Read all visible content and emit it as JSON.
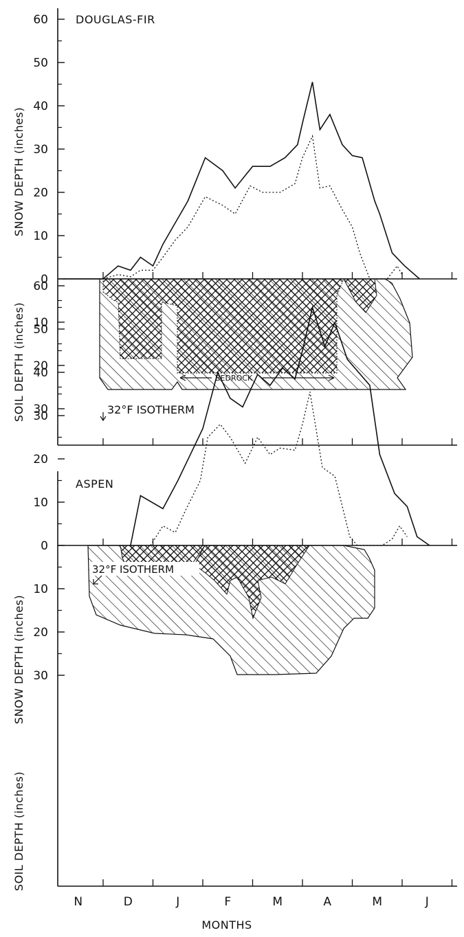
{
  "chart_data": [
    {
      "type": "line",
      "title": "DOUGLAS-FIR",
      "ylabel_top": "SNOW DEPTH (inches)",
      "ylabel_bottom": "SOIL DEPTH (inches)",
      "snow_ticks": [
        "60",
        "50",
        "40",
        "30",
        "20",
        "10",
        "0"
      ],
      "soil_ticks": [
        "10",
        "20",
        "30"
      ],
      "snow_ylim": [
        0,
        65
      ],
      "soil_ylim": [
        0,
        37
      ],
      "months_x_domain": [
        0,
        8
      ],
      "series": [
        {
          "style": "solid",
          "x": [
            -0.8,
            0.0,
            0.1,
            0.3,
            0.55,
            0.75,
            1.0,
            1.2,
            1.4,
            1.7,
            2.05,
            2.4,
            2.65,
            3.0,
            3.35,
            3.65,
            3.9,
            4.0,
            4.2,
            4.35,
            4.55,
            4.8,
            5.0,
            5.2,
            5.45,
            5.55,
            5.8,
            6.05,
            6.35
          ],
          "values": [
            0,
            0,
            1,
            3,
            2,
            5,
            3,
            8,
            12,
            18,
            28,
            25,
            21,
            26,
            26,
            28,
            31,
            36,
            45.5,
            34.5,
            38,
            31,
            28.5,
            28,
            18,
            15,
            6,
            3,
            0
          ]
        },
        {
          "style": "dotted",
          "x": [
            0.0,
            0.3,
            0.55,
            0.75,
            1.0,
            1.2,
            1.45,
            1.7,
            2.05,
            2.4,
            2.65,
            2.95,
            3.2,
            3.55,
            3.85,
            4.0,
            4.2,
            4.35,
            4.55,
            4.8,
            5.0,
            5.15,
            5.35,
            5.7,
            5.9,
            6.0
          ],
          "values": [
            0,
            1,
            0.5,
            2,
            2,
            5,
            9,
            12,
            19,
            17,
            15,
            21.5,
            20,
            20,
            22,
            28,
            33,
            21,
            21.5,
            16,
            12,
            6,
            0,
            0,
            3,
            1
          ]
        }
      ],
      "annotations": [
        "BEDROCK",
        "32°F ISOTHERM"
      ]
    },
    {
      "type": "line",
      "title": "ASPEN",
      "ylabel_top": "SNOW DEPTH (inches)",
      "ylabel_bottom": "SOIL DEPTH (inches)",
      "snow_ticks": [
        "60",
        "50",
        "40",
        "30",
        "20",
        "10",
        "0"
      ],
      "soil_ticks": [
        "10",
        "20",
        "30"
      ],
      "snow_ylim": [
        0,
        65
      ],
      "soil_ylim": [
        0,
        37
      ],
      "months_x_domain": [
        0,
        8
      ],
      "x_ticklabels": [
        "N",
        "D",
        "J",
        "F",
        "M",
        "A",
        "M",
        "J"
      ],
      "xlabel": "MONTHS",
      "series": [
        {
          "style": "solid",
          "x": [
            0.55,
            0.75,
            1.2,
            1.5,
            1.75,
            2.0,
            2.3,
            2.55,
            2.8,
            3.1,
            3.35,
            3.6,
            3.85,
            4.0,
            4.2,
            4.45,
            4.65,
            4.9,
            5.35,
            5.55,
            5.85,
            6.1,
            6.3,
            6.55
          ],
          "values": [
            0,
            11.5,
            8.5,
            15,
            21,
            27,
            40,
            34,
            32,
            39.5,
            37,
            41,
            38.5,
            45,
            55,
            46,
            51.5,
            43,
            37,
            21,
            12,
            9,
            2,
            0
          ]
        },
        {
          "style": "dotted",
          "x": [
            0.95,
            1.2,
            1.45,
            1.65,
            1.95,
            2.1,
            2.35,
            2.55,
            2.85,
            3.1,
            3.35,
            3.55,
            3.85,
            4.0,
            4.15,
            4.4,
            4.65,
            4.95,
            5.1,
            5.4,
            5.6,
            5.8,
            5.95,
            6.1
          ],
          "values": [
            0,
            4.5,
            3,
            8,
            15,
            25,
            28,
            25,
            19,
            25,
            21,
            22.5,
            22,
            28,
            35.5,
            18,
            16,
            2,
            0,
            0,
            0,
            1.5,
            4.5,
            2
          ]
        }
      ],
      "annotations": [
        "32°F ISOTHERM"
      ]
    }
  ]
}
